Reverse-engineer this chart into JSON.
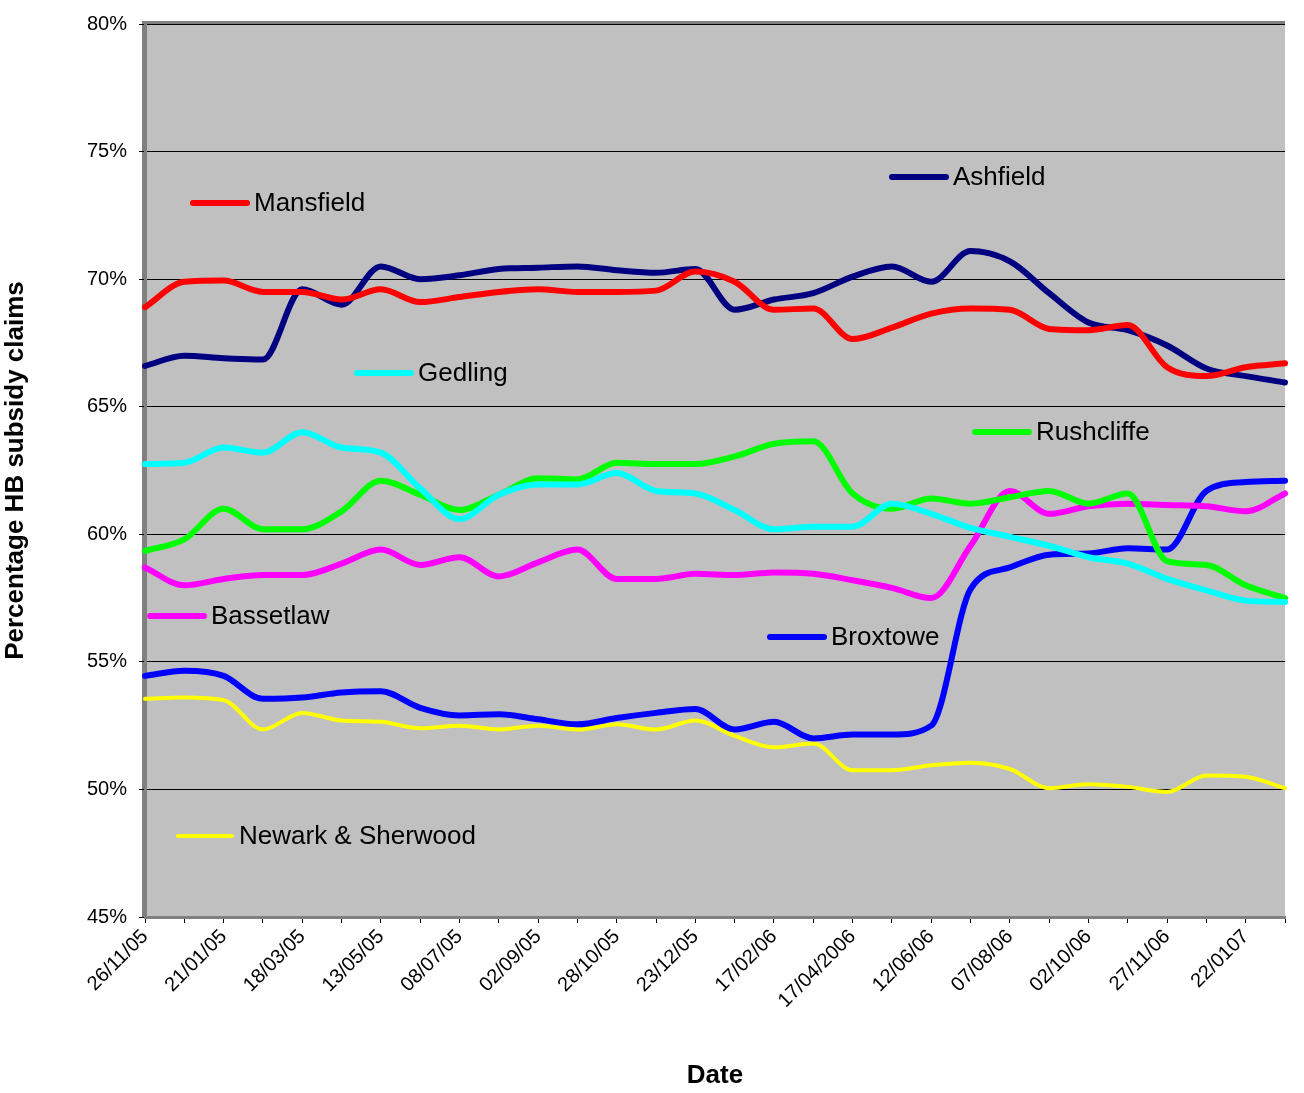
{
  "chart_data": {
    "type": "line",
    "xlabel": "Date",
    "ylabel": "Percentage HB subsidy claims",
    "categories": [
      "26/11/05",
      null,
      "21/01/05",
      null,
      "18/03/05",
      null,
      "13/05/05",
      null,
      "08/07/05",
      null,
      "02/09/05",
      null,
      "28/10/05",
      null,
      "23/12/05",
      null,
      "17/02/06",
      null,
      "17/04/2006",
      null,
      "12/06/06",
      null,
      "07/08/06",
      null,
      "02/10/06",
      null,
      "27/11/06",
      null,
      "22/0107",
      null
    ],
    "ylim": [
      45,
      80
    ],
    "yticks": [
      {
        "value": 45,
        "label": "45%"
      },
      {
        "value": 50,
        "label": "50%"
      },
      {
        "value": 55,
        "label": "55%"
      },
      {
        "value": 60,
        "label": "60%"
      },
      {
        "value": 65,
        "label": "65%"
      },
      {
        "value": 70,
        "label": "70%"
      },
      {
        "value": 75,
        "label": "75%"
      },
      {
        "value": 80,
        "label": "80%"
      }
    ],
    "grid": "y",
    "legend": "bottom left",
    "marker": "none",
    "line_style": "solid",
    "series": [
      {
        "name": "Mansfield",
        "color": "#ff0000",
        "values": [
          68.9,
          69.9,
          69.95,
          69.5,
          69.5,
          69.2,
          69.6,
          69.1,
          69.3,
          69.5,
          69.6,
          69.5,
          69.5,
          69.55,
          70.3,
          69.9,
          68.8,
          68.85,
          67.65,
          68.1,
          68.65,
          68.85,
          68.8,
          68.05,
          68.0,
          68.2,
          66.55,
          66.2,
          66.55,
          66.7
        ]
      },
      {
        "name": "Ashfield",
        "color": "#000080",
        "values": [
          66.6,
          67.0,
          66.9,
          66.85,
          69.6,
          69.0,
          70.5,
          70.0,
          70.15,
          70.4,
          70.45,
          70.5,
          70.35,
          70.25,
          70.4,
          68.8,
          69.2,
          69.45,
          70.1,
          70.5,
          69.9,
          71.1,
          70.7,
          69.45,
          68.3,
          68.0,
          67.4,
          66.5,
          66.2,
          65.95
        ]
      },
      {
        "name": "Gedling",
        "color": "#00ffff",
        "values": [
          62.75,
          62.8,
          63.4,
          63.2,
          64.0,
          63.4,
          63.2,
          61.8,
          60.6,
          61.55,
          61.95,
          61.95,
          62.4,
          61.7,
          61.6,
          60.95,
          60.2,
          60.3,
          60.3,
          61.2,
          60.8,
          60.25,
          59.9,
          59.55,
          59.1,
          58.85,
          58.25,
          57.8,
          57.4,
          57.35
        ]
      },
      {
        "name": "Rushcliffe",
        "color": "#00ff00",
        "values": [
          59.35,
          59.8,
          61.0,
          60.2,
          60.2,
          60.9,
          62.1,
          61.55,
          60.95,
          61.55,
          62.2,
          62.15,
          62.8,
          62.75,
          62.75,
          63.05,
          63.55,
          63.65,
          61.6,
          61.0,
          61.4,
          61.2,
          61.45,
          61.7,
          61.2,
          61.6,
          58.95,
          58.8,
          58.0,
          57.5
        ]
      },
      {
        "name": "Bassetlaw",
        "color": "#ff00ff",
        "values": [
          58.7,
          58.0,
          58.25,
          58.4,
          58.4,
          58.85,
          59.4,
          58.8,
          59.1,
          58.35,
          58.9,
          59.4,
          58.25,
          58.25,
          58.45,
          58.4,
          58.5,
          58.45,
          58.2,
          57.9,
          57.5,
          59.55,
          61.7,
          60.8,
          61.1,
          61.2,
          61.15,
          61.1,
          60.9,
          61.6
        ]
      },
      {
        "name": "Broxtowe",
        "color": "#0000ff",
        "values": [
          54.45,
          54.65,
          54.45,
          53.55,
          53.6,
          53.8,
          53.85,
          53.2,
          52.9,
          52.95,
          52.75,
          52.55,
          52.8,
          53.0,
          53.15,
          52.35,
          52.65,
          52.0,
          52.15,
          52.15,
          52.5,
          57.85,
          58.7,
          59.2,
          59.25,
          59.45,
          59.4,
          61.7,
          62.05,
          62.1
        ]
      },
      {
        "name": "Newark & Sherwood",
        "color": "#ffff00",
        "values": [
          53.55,
          53.6,
          53.5,
          52.35,
          53.0,
          52.7,
          52.65,
          52.4,
          52.5,
          52.35,
          52.5,
          52.35,
          52.55,
          52.35,
          52.7,
          52.1,
          51.65,
          51.8,
          50.75,
          50.75,
          50.95,
          51.05,
          50.8,
          50.05,
          50.2,
          50.1,
          49.9,
          50.55,
          50.5,
          50.05
        ]
      }
    ]
  }
}
